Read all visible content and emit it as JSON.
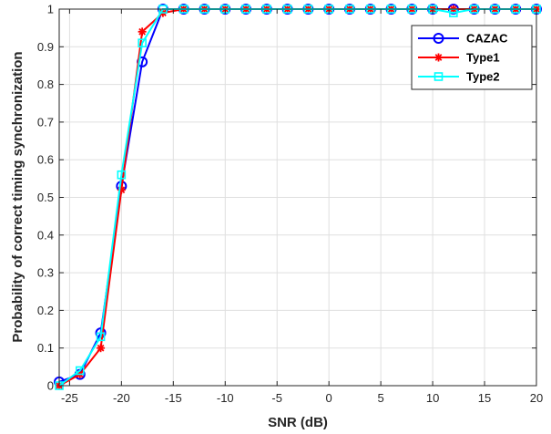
{
  "chart_data": {
    "type": "line",
    "xlabel": "SNR (dB)",
    "ylabel": "Probability of correct timing synchronization",
    "xlim": [
      -26,
      20
    ],
    "ylim": [
      0,
      1
    ],
    "xticks": [
      -25,
      -20,
      -15,
      -10,
      -5,
      0,
      5,
      10,
      15,
      20
    ],
    "yticks": [
      0,
      0.1,
      0.2,
      0.3,
      0.4,
      0.5,
      0.6,
      0.7,
      0.8,
      0.9,
      1
    ],
    "xtick_labels": [
      "-25",
      "-20",
      "-15",
      "-10",
      "-5",
      "0",
      "5",
      "10",
      "15",
      "20"
    ],
    "ytick_labels": [
      "0",
      "0.1",
      "0.2",
      "0.3",
      "0.4",
      "0.5",
      "0.6",
      "0.7",
      "0.8",
      "0.9",
      "1"
    ],
    "grid": true,
    "legend_position": "top-right",
    "x": [
      -26,
      -24,
      -22,
      -20,
      -18,
      -16,
      -14,
      -12,
      -10,
      -8,
      -6,
      -4,
      -2,
      0,
      2,
      4,
      6,
      8,
      10,
      12,
      14,
      16,
      18,
      20
    ],
    "series": [
      {
        "name": "CAZAC",
        "color": "#0000ff",
        "marker": "circle",
        "values": [
          0.01,
          0.03,
          0.14,
          0.53,
          0.86,
          1,
          1,
          1,
          1,
          1,
          1,
          1,
          1,
          1,
          1,
          1,
          1,
          1,
          1,
          1,
          1,
          1,
          1,
          1
        ]
      },
      {
        "name": "Type1",
        "color": "#ff0000",
        "marker": "asterisk",
        "values": [
          0,
          0.03,
          0.1,
          0.52,
          0.94,
          0.99,
          1,
          1,
          1,
          1,
          1,
          1,
          1,
          1,
          1,
          1,
          1,
          1,
          1,
          1,
          1,
          1,
          1,
          1
        ]
      },
      {
        "name": "Type2",
        "color": "#00ffff",
        "marker": "square",
        "values": [
          0,
          0.04,
          0.13,
          0.56,
          0.91,
          1,
          1,
          1,
          1,
          1,
          1,
          1,
          1,
          1,
          1,
          1,
          1,
          1,
          1,
          0.99,
          1,
          1,
          1,
          1
        ]
      }
    ]
  }
}
